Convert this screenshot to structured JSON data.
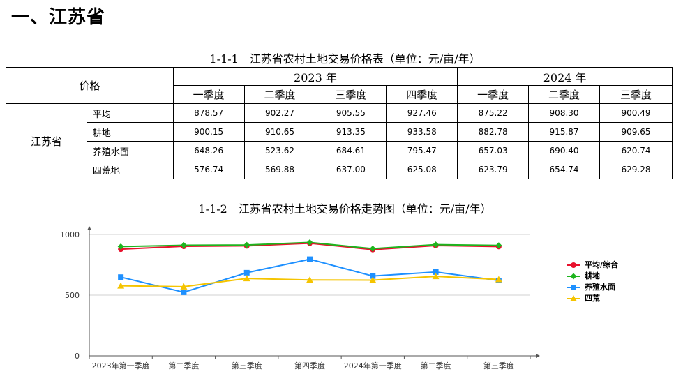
{
  "section_title": "一、江苏省",
  "table_caption": {
    "number": "1-1-1",
    "text": "江苏省农村土地交易价格表（单位：元/亩/年）"
  },
  "table": {
    "corner": "价格",
    "years": [
      {
        "label": "2023 年",
        "quarters": [
          "一季度",
          "二季度",
          "三季度",
          "四季度"
        ]
      },
      {
        "label": "2024 年",
        "quarters": [
          "一季度",
          "二季度",
          "三季度"
        ]
      }
    ],
    "province": "江苏省",
    "rows": [
      {
        "category": "平均",
        "values": [
          "878.57",
          "902.27",
          "905.55",
          "927.46",
          "875.22",
          "908.30",
          "900.49"
        ]
      },
      {
        "category": "耕地",
        "values": [
          "900.15",
          "910.65",
          "913.35",
          "933.58",
          "882.78",
          "915.87",
          "909.65"
        ]
      },
      {
        "category": "养殖水面",
        "values": [
          "648.26",
          "523.62",
          "684.61",
          "795.47",
          "657.03",
          "690.40",
          "620.74"
        ]
      },
      {
        "category": "四荒地",
        "values": [
          "576.74",
          "569.88",
          "637.00",
          "625.08",
          "623.79",
          "654.74",
          "629.28"
        ]
      }
    ]
  },
  "chart_caption": {
    "number": "1-1-2",
    "text": "江苏省农村土地交易价格走势图（单位：元/亩/年）"
  },
  "chart_data": {
    "type": "line",
    "categories": [
      "2023年第一季度",
      "第二季度",
      "第三季度",
      "第四季度",
      "2024年第一季度",
      "第二季度",
      "第三季度"
    ],
    "y_ticks": [
      "0",
      "500",
      "1000"
    ],
    "ylim": [
      0,
      1000
    ],
    "grid": "horizontal",
    "legend_position": "right",
    "series": [
      {
        "name": "平均/综合",
        "color": "#e8112d",
        "marker": "circle",
        "values": [
          878.57,
          902.27,
          905.55,
          927.46,
          875.22,
          908.3,
          900.49
        ]
      },
      {
        "name": "耕地",
        "color": "#1eb41e",
        "marker": "diamond",
        "values": [
          900.15,
          910.65,
          913.35,
          933.58,
          882.78,
          915.87,
          909.65
        ]
      },
      {
        "name": "养殖水面",
        "color": "#1e90ff",
        "marker": "square",
        "values": [
          648.26,
          523.62,
          684.61,
          795.47,
          657.03,
          690.4,
          620.74
        ]
      },
      {
        "name": "四荒",
        "color": "#f5c400",
        "marker": "triangle",
        "values": [
          576.74,
          569.88,
          637.0,
          625.08,
          623.79,
          654.74,
          629.28
        ]
      }
    ]
  }
}
